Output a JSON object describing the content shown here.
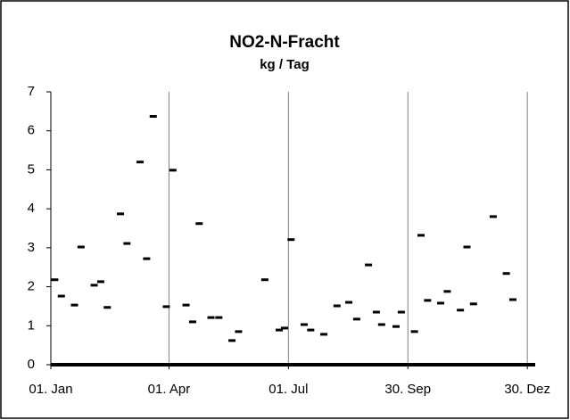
{
  "chart_data": {
    "type": "scatter",
    "title": "NO2-N-Fracht",
    "subtitle": "kg / Tag",
    "x": [
      3,
      8,
      18,
      23,
      33,
      38,
      43,
      53,
      58,
      68,
      73,
      78,
      88,
      93,
      103,
      108,
      113,
      122,
      128,
      138,
      143,
      163,
      174,
      178,
      183,
      193,
      198,
      208,
      218,
      227,
      233,
      242,
      248,
      252,
      263,
      267,
      277,
      282,
      287,
      297,
      302,
      312,
      317,
      322,
      337,
      347,
      352
    ],
    "values": [
      2.18,
      1.76,
      1.53,
      3.02,
      2.04,
      2.13,
      1.47,
      3.87,
      3.11,
      5.2,
      2.72,
      6.37,
      1.49,
      4.99,
      1.53,
      1.1,
      3.62,
      1.21,
      1.21,
      0.62,
      0.85,
      2.18,
      0.89,
      0.94,
      3.21,
      1.03,
      0.89,
      0.78,
      1.51,
      1.6,
      1.17,
      2.56,
      1.35,
      1.03,
      0.98,
      1.35,
      0.85,
      3.32,
      1.65,
      1.58,
      1.88,
      1.4,
      3.02,
      1.56,
      3.8,
      2.34,
      1.67
    ],
    "color": "#000000",
    "xlim": [
      0,
      369
    ],
    "xticks": [
      {
        "value": 0,
        "label": "01. Jan"
      },
      {
        "value": 90,
        "label": "01. Apr"
      },
      {
        "value": 181,
        "label": "01. Jul"
      },
      {
        "value": 272,
        "label": "30. Sep"
      },
      {
        "value": 363,
        "label": "30. Dez"
      }
    ],
    "ylim": [
      0,
      7
    ],
    "yticks": [
      0,
      1,
      2,
      3,
      4,
      5,
      6,
      7
    ],
    "grid": true
  }
}
